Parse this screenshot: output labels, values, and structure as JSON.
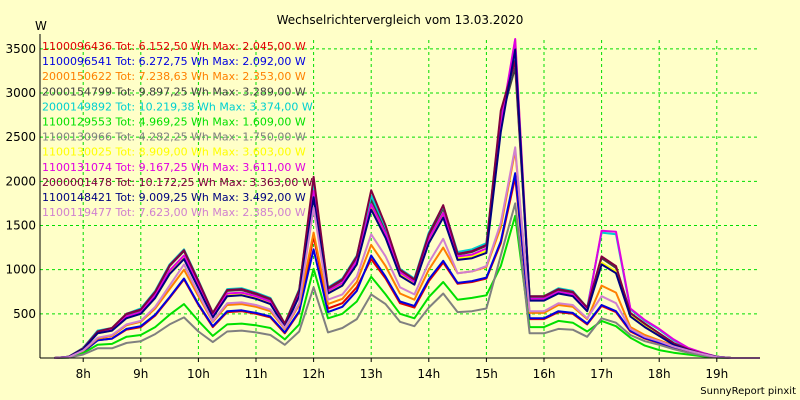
{
  "chart_data": {
    "type": "line",
    "title": "Wechselrichtervergleich vom 13.03.2020",
    "ylabel": "W",
    "credit": "SunnyReport pinxit",
    "ylim": [
      0,
      3600
    ],
    "yticks": [
      500,
      1000,
      1500,
      2000,
      2500,
      3000,
      3500
    ],
    "xlim": [
      7.25,
      19.75
    ],
    "xticks": [
      {
        "value": 8,
        "label": "8h"
      },
      {
        "value": 9,
        "label": "9h"
      },
      {
        "value": 10,
        "label": "10h"
      },
      {
        "value": 11,
        "label": "11h"
      },
      {
        "value": 12,
        "label": "12h"
      },
      {
        "value": 13,
        "label": "13h"
      },
      {
        "value": 14,
        "label": "14h"
      },
      {
        "value": 15,
        "label": "15h"
      },
      {
        "value": 16,
        "label": "16h"
      },
      {
        "value": 17,
        "label": "17h"
      },
      {
        "value": 18,
        "label": "18h"
      },
      {
        "value": 19,
        "label": "19h"
      }
    ],
    "grid": true,
    "legend_position": "top-left",
    "colors": {
      "background": "#ffffc8",
      "grid": "#00dd00",
      "axis": "#000000"
    },
    "x": [
      7.5,
      7.75,
      8.0,
      8.25,
      8.5,
      8.75,
      9.0,
      9.25,
      9.5,
      9.75,
      10.0,
      10.25,
      10.5,
      10.75,
      11.0,
      11.25,
      11.5,
      11.75,
      12.0,
      12.25,
      12.5,
      12.75,
      13.0,
      13.25,
      13.5,
      13.75,
      14.0,
      14.25,
      14.5,
      14.75,
      15.0,
      15.25,
      15.5,
      15.75,
      16.0,
      16.25,
      16.5,
      16.75,
      17.0,
      17.25,
      17.5,
      17.75,
      18.0,
      18.25,
      18.5,
      18.75,
      19.0,
      19.25,
      19.5,
      19.75
    ],
    "series": [
      {
        "name": "1100096436 Tot: 6.152,50 Wh Max: 2.045,00 W",
        "color": "#e00000",
        "values": [
          0,
          10,
          70,
          200,
          220,
          320,
          350,
          480,
          680,
          890,
          600,
          350,
          520,
          530,
          500,
          460,
          280,
          520,
          1380,
          560,
          620,
          800,
          1120,
          900,
          620,
          570,
          870,
          1080,
          840,
          860,
          900,
          1300,
          2045,
          440,
          440,
          520,
          500,
          380,
          590,
          520,
          300,
          220,
          170,
          120,
          80,
          40,
          10,
          0,
          0,
          0
        ]
      },
      {
        "name": "1100096541 Tot: 6.272,75 Wh Max: 2.092,00 W",
        "color": "#0000e0",
        "values": [
          0,
          10,
          70,
          200,
          220,
          330,
          360,
          490,
          690,
          900,
          610,
          360,
          530,
          540,
          510,
          470,
          290,
          530,
          1230,
          520,
          580,
          760,
          1160,
          920,
          640,
          590,
          890,
          1100,
          850,
          870,
          910,
          1320,
          2092,
          450,
          450,
          530,
          510,
          390,
          600,
          530,
          310,
          225,
          175,
          125,
          85,
          40,
          10,
          0,
          0,
          0
        ]
      },
      {
        "name": "2000150622 Tot: 7.238,63 Wh Max: 2.353,00 W",
        "color": "#ff8000",
        "values": [
          0,
          10,
          80,
          220,
          250,
          370,
          410,
          560,
          780,
          1000,
          700,
          410,
          600,
          610,
          580,
          530,
          330,
          600,
          1420,
          610,
          670,
          860,
          1280,
          1040,
          730,
          660,
          1000,
          1250,
          960,
          980,
          1030,
          1480,
          2353,
          510,
          510,
          600,
          580,
          440,
          820,
          740,
          350,
          260,
          200,
          140,
          95,
          50,
          15,
          0,
          0,
          0
        ]
      },
      {
        "name": "2000154799 Tot: 9.897,25 Wh Max: 3.289,00 W",
        "color": "#404040",
        "values": [
          0,
          15,
          110,
          300,
          330,
          490,
          540,
          740,
          1040,
          1210,
          860,
          500,
          760,
          770,
          720,
          660,
          380,
          760,
          1950,
          780,
          880,
          1130,
          1790,
          1450,
          990,
          880,
          1390,
          1690,
          1170,
          1200,
          1270,
          2700,
          3289,
          690,
          690,
          770,
          740,
          560,
          1130,
          1020,
          500,
          380,
          270,
          160,
          95,
          50,
          15,
          0,
          0,
          0
        ]
      },
      {
        "name": "2000149892 Tot: 10.219,38 Wh Max: 3.374,00 W",
        "color": "#00d0d0",
        "values": [
          0,
          15,
          115,
          310,
          340,
          500,
          560,
          760,
          1060,
          1230,
          880,
          510,
          780,
          790,
          740,
          680,
          390,
          780,
          1990,
          800,
          900,
          1160,
          1840,
          1480,
          1010,
          900,
          1420,
          1720,
          1200,
          1230,
          1300,
          2760,
          3374,
          700,
          700,
          790,
          760,
          570,
          1420,
          1400,
          550,
          420,
          320,
          200,
          110,
          55,
          15,
          0,
          0,
          0
        ]
      },
      {
        "name": "1100129553 Tot: 4.969,25 Wh Max: 1.609,00 W",
        "color": "#00e000",
        "values": [
          0,
          5,
          55,
          150,
          160,
          240,
          260,
          350,
          490,
          610,
          420,
          250,
          380,
          390,
          370,
          340,
          210,
          380,
          1010,
          450,
          500,
          640,
          920,
          720,
          500,
          450,
          690,
          860,
          660,
          680,
          710,
          1040,
          1609,
          350,
          350,
          420,
          400,
          300,
          420,
          360,
          230,
          140,
          90,
          60,
          40,
          20,
          5,
          0,
          0,
          0
        ]
      },
      {
        "name": "1100130966 Tot: 4.282,25 Wh Max: 1.750,00 W",
        "color": "#808080",
        "values": [
          0,
          5,
          40,
          110,
          110,
          170,
          190,
          270,
          380,
          460,
          300,
          180,
          300,
          310,
          290,
          260,
          150,
          300,
          800,
          290,
          340,
          440,
          720,
          610,
          410,
          360,
          570,
          730,
          520,
          530,
          560,
          1160,
          1750,
          280,
          280,
          330,
          320,
          240,
          450,
          400,
          260,
          190,
          150,
          100,
          60,
          30,
          5,
          0,
          0,
          0
        ]
      },
      {
        "name": "1100130025 Tot: 8.909,00 Wh Max: 3.603,00 W",
        "color": "#ffff00",
        "values": [
          0,
          15,
          100,
          280,
          310,
          460,
          500,
          690,
          960,
          1130,
          800,
          470,
          710,
          720,
          680,
          620,
          360,
          710,
          1840,
          740,
          830,
          1070,
          1700,
          1380,
          950,
          840,
          1320,
          1610,
          1130,
          1150,
          1210,
          2590,
          3603,
          660,
          660,
          740,
          710,
          540,
          1080,
          980,
          480,
          360,
          260,
          150,
          90,
          45,
          15,
          0,
          0,
          0
        ]
      },
      {
        "name": "1100131074 Tot: 9.167,25 Wh Max: 3.611,00 W",
        "color": "#e000e0",
        "values": [
          0,
          15,
          105,
          290,
          320,
          470,
          520,
          710,
          990,
          1160,
          820,
          480,
          730,
          740,
          700,
          640,
          370,
          730,
          1890,
          760,
          850,
          1100,
          1740,
          1410,
          970,
          860,
          1350,
          1640,
          1150,
          1170,
          1240,
          2650,
          3611,
          670,
          670,
          750,
          720,
          550,
          1440,
          1430,
          560,
          430,
          330,
          210,
          115,
          60,
          15,
          0,
          0,
          0
        ]
      },
      {
        "name": "2000001478 Tot: 10.172,25 Wh Max: 3.363,00 W",
        "color": "#800040",
        "values": [
          0,
          15,
          110,
          300,
          340,
          500,
          550,
          750,
          1050,
          1220,
          870,
          510,
          770,
          780,
          730,
          670,
          390,
          770,
          2050,
          790,
          890,
          1150,
          1900,
          1500,
          1000,
          890,
          1400,
          1730,
          1180,
          1210,
          1280,
          2800,
          3363,
          700,
          700,
          780,
          750,
          570,
          1150,
          1040,
          510,
          390,
          280,
          170,
          100,
          50,
          15,
          0,
          0,
          0
        ]
      },
      {
        "name": "1100148421 Tot: 9.009,25 Wh Max: 3.492,00 W",
        "color": "#000080",
        "values": [
          0,
          15,
          100,
          280,
          310,
          450,
          500,
          680,
          950,
          1120,
          790,
          460,
          700,
          710,
          670,
          610,
          350,
          700,
          1820,
          730,
          820,
          1060,
          1680,
          1360,
          930,
          830,
          1300,
          1590,
          1110,
          1130,
          1190,
          2560,
          3492,
          650,
          650,
          730,
          700,
          530,
          1060,
          960,
          470,
          350,
          250,
          150,
          90,
          45,
          15,
          0,
          0,
          0
        ]
      },
      {
        "name": "1100119477 Tot: 7.623,00 Wh Max: 2.385,00 W",
        "color": "#d080d0",
        "values": [
          0,
          10,
          85,
          230,
          260,
          380,
          420,
          580,
          820,
          1060,
          730,
          420,
          620,
          630,
          600,
          550,
          340,
          620,
          1700,
          660,
          720,
          920,
          1400,
          1150,
          800,
          720,
          1080,
          1350,
          960,
          980,
          1040,
          1530,
          2385,
          530,
          530,
          620,
          600,
          450,
          700,
          620,
          330,
          240,
          190,
          130,
          85,
          45,
          10,
          0,
          0,
          0
        ]
      }
    ]
  }
}
